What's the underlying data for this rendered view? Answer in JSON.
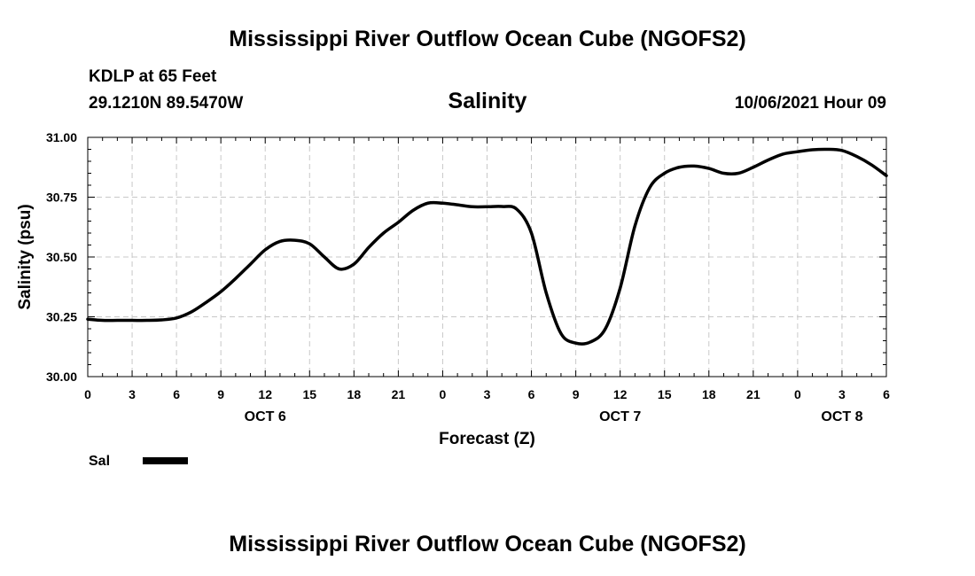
{
  "header": {
    "title": "Mississippi River Outflow Ocean Cube (NGOFS2)",
    "station": "KDLP at 65 Feet",
    "coords": "29.1210N  89.5470W",
    "subtitle": "Salinity",
    "run_time": "10/06/2021 Hour 09"
  },
  "footer": {
    "title": "Mississippi River Outflow Ocean Cube (NGOFS2)"
  },
  "chart_data": {
    "type": "line",
    "title": "Salinity",
    "xlabel": "Forecast (Z)",
    "ylabel": "Salinity (psu)",
    "xlim": [
      0,
      54
    ],
    "ylim": [
      30.0,
      31.0
    ],
    "grid": true,
    "y_ticks": [
      "30.00",
      "30.25",
      "30.50",
      "30.75",
      "31.00"
    ],
    "x_tick_labels": [
      "0",
      "3",
      "6",
      "9",
      "12",
      "15",
      "18",
      "21",
      "0",
      "3",
      "6",
      "9",
      "12",
      "15",
      "18",
      "21",
      "0",
      "3",
      "6"
    ],
    "day_labels": [
      {
        "label": "OCT 6",
        "hour": 12
      },
      {
        "label": "OCT 7",
        "hour": 36
      },
      {
        "label": "OCT 8",
        "hour": 51
      }
    ],
    "legend": [
      {
        "name": "Sal",
        "color": "#000000"
      }
    ],
    "series": [
      {
        "name": "Sal",
        "color": "#000000",
        "x": [
          0,
          1,
          2,
          3,
          4,
          5,
          6,
          7,
          8,
          9,
          10,
          11,
          12,
          13,
          14,
          15,
          16,
          17,
          18,
          19,
          20,
          21,
          22,
          23,
          24,
          25,
          26,
          27,
          28,
          29,
          30,
          31,
          32,
          33,
          34,
          35,
          36,
          37,
          38,
          39,
          40,
          41,
          42,
          43,
          44,
          45,
          46,
          47,
          48,
          49,
          50,
          51,
          52,
          53,
          54
        ],
        "values": [
          30.24,
          30.235,
          30.235,
          30.235,
          30.235,
          30.237,
          30.245,
          30.27,
          30.31,
          30.355,
          30.41,
          30.47,
          30.53,
          30.565,
          30.57,
          30.555,
          30.5,
          30.45,
          30.47,
          30.54,
          30.6,
          30.645,
          30.695,
          30.725,
          30.725,
          30.718,
          30.71,
          30.71,
          30.711,
          30.7,
          30.6,
          30.35,
          30.18,
          30.14,
          30.145,
          30.2,
          30.37,
          30.63,
          30.79,
          30.85,
          30.875,
          30.88,
          30.87,
          30.85,
          30.85,
          30.875,
          30.905,
          30.93,
          30.94,
          30.948,
          30.95,
          30.945,
          30.92,
          30.885,
          30.84
        ]
      }
    ]
  }
}
